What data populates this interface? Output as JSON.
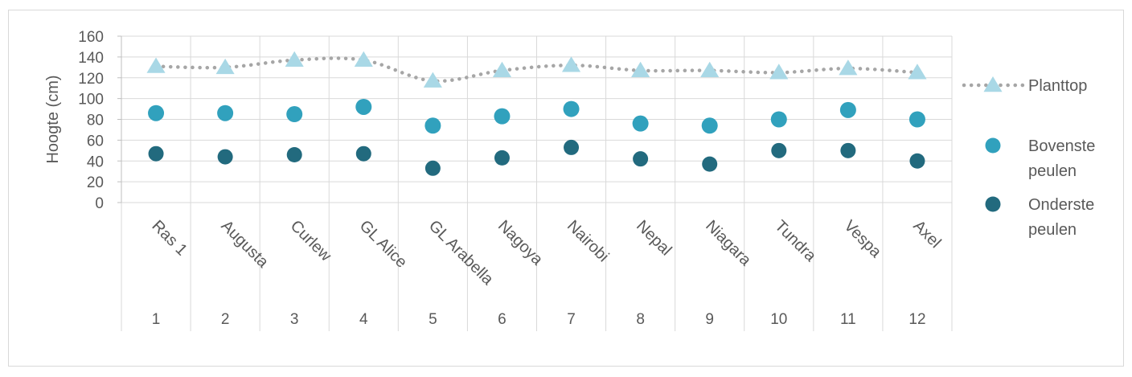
{
  "chart_data": {
    "type": "scatter",
    "title": "",
    "ylabel": "Hoogte (cm)",
    "xlabel": "",
    "ylim": [
      0,
      160
    ],
    "yticks": [
      0,
      20,
      40,
      60,
      80,
      100,
      120,
      140,
      160
    ],
    "grid": true,
    "legend_position": "right",
    "categories": [
      "Ras 1",
      "Augusta",
      "Curlew",
      "GL Alice",
      "GL Arabella",
      "Nagoya",
      "Nairobi",
      "Nepal",
      "Niagara",
      "Tundra",
      "Vespa",
      "Axel"
    ],
    "numbers": [
      "1",
      "2",
      "3",
      "4",
      "5",
      "6",
      "7",
      "8",
      "9",
      "10",
      "11",
      "12"
    ],
    "series": [
      {
        "name": "Planttop",
        "marker": "triangle",
        "line": "dotted",
        "color": "#a9d8e6",
        "line_color": "#a6a6a6",
        "values": [
          131,
          130,
          137,
          137,
          117,
          127,
          132,
          127,
          127,
          125,
          129,
          125
        ]
      },
      {
        "name": "Bovenste peulen",
        "marker": "circle",
        "color": "#31a1bd",
        "values": [
          86,
          86,
          85,
          92,
          74,
          83,
          90,
          76,
          74,
          80,
          89,
          80
        ]
      },
      {
        "name": "Onderste peulen",
        "marker": "circle",
        "color": "#226a7e",
        "values": [
          47,
          44,
          46,
          47,
          33,
          43,
          53,
          42,
          37,
          50,
          50,
          40
        ]
      }
    ],
    "legend": [
      {
        "lines": [
          "Planttop"
        ]
      },
      {
        "lines": [
          "Bovenste",
          "peulen"
        ]
      },
      {
        "lines": [
          "Onderste",
          "peulen"
        ]
      }
    ]
  }
}
